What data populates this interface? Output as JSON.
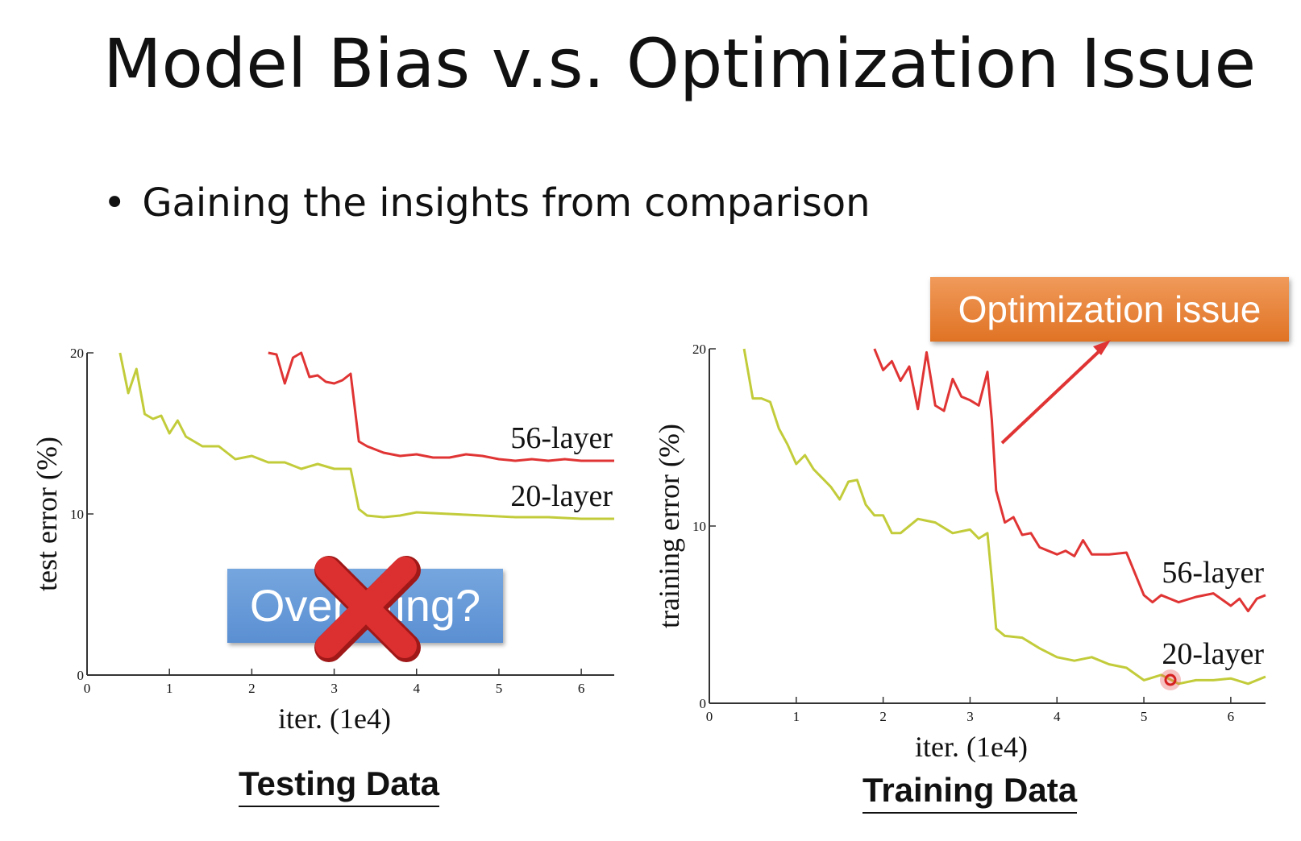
{
  "slide": {
    "title": "Model Bias v.s. Optimization Issue",
    "bullet_symbol": "•",
    "bullet": "Gaining the insights from comparison"
  },
  "annotations": {
    "overfitting_label": "Overfitting?",
    "optimization_label": "Optimization issue"
  },
  "colors": {
    "series_56": "#e03434",
    "series_20": "#c2cc3a",
    "overfit_box": "#6b9bd8",
    "callout": "#e87d30",
    "cross": "#d92c2c"
  },
  "chart_data": [
    {
      "type": "line",
      "caption": "Testing Data",
      "xlabel": "iter. (1e4)",
      "ylabel": "test error (%)",
      "xlim": [
        0,
        6.4
      ],
      "ylim": [
        0,
        20
      ],
      "xticks": [
        0,
        1,
        2,
        3,
        4,
        5,
        6
      ],
      "yticks": [
        0,
        10,
        20
      ],
      "series": [
        {
          "name": "56-layer",
          "x": [
            2.2,
            2.3,
            2.4,
            2.5,
            2.6,
            2.7,
            2.8,
            2.9,
            3.0,
            3.1,
            3.2,
            3.3,
            3.4,
            3.6,
            3.8,
            4.0,
            4.2,
            4.4,
            4.6,
            4.8,
            5.0,
            5.2,
            5.4,
            5.6,
            5.8,
            6.0,
            6.2,
            6.4
          ],
          "y": [
            20,
            19.9,
            18.1,
            19.7,
            20,
            18.5,
            18.6,
            18.2,
            18.1,
            18.3,
            18.7,
            14.5,
            14.2,
            13.8,
            13.6,
            13.7,
            13.5,
            13.5,
            13.7,
            13.6,
            13.4,
            13.3,
            13.4,
            13.3,
            13.4,
            13.3,
            13.3,
            13.3
          ]
        },
        {
          "name": "20-layer",
          "x": [
            0.4,
            0.5,
            0.6,
            0.7,
            0.8,
            0.9,
            1.0,
            1.1,
            1.2,
            1.4,
            1.6,
            1.8,
            2.0,
            2.2,
            2.4,
            2.6,
            2.8,
            3.0,
            3.2,
            3.3,
            3.4,
            3.6,
            3.8,
            4.0,
            4.4,
            4.8,
            5.2,
            5.6,
            6.0,
            6.4
          ],
          "y": [
            20,
            17.5,
            19,
            16.2,
            15.9,
            16.1,
            15,
            15.8,
            14.8,
            14.2,
            14.2,
            13.4,
            13.6,
            13.2,
            13.2,
            12.8,
            13.1,
            12.8,
            12.8,
            10.3,
            9.9,
            9.8,
            9.9,
            10.1,
            10,
            9.9,
            9.8,
            9.8,
            9.7,
            9.7
          ]
        }
      ]
    },
    {
      "type": "line",
      "caption": "Training Data",
      "xlabel": "iter. (1e4)",
      "ylabel": "training error (%)",
      "xlim": [
        0,
        6.4
      ],
      "ylim": [
        0,
        20
      ],
      "xticks": [
        0,
        1,
        2,
        3,
        4,
        5,
        6
      ],
      "yticks": [
        0,
        10,
        20
      ],
      "series": [
        {
          "name": "56-layer",
          "x": [
            1.9,
            2.0,
            2.1,
            2.2,
            2.3,
            2.4,
            2.5,
            2.6,
            2.7,
            2.8,
            2.9,
            3.0,
            3.1,
            3.2,
            3.25,
            3.3,
            3.4,
            3.5,
            3.6,
            3.7,
            3.8,
            3.9,
            4.0,
            4.1,
            4.2,
            4.3,
            4.4,
            4.6,
            4.8,
            5.0,
            5.1,
            5.2,
            5.4,
            5.6,
            5.8,
            6.0,
            6.1,
            6.2,
            6.3,
            6.4
          ],
          "y": [
            20,
            18.8,
            19.3,
            18.2,
            19,
            16.6,
            19.8,
            16.8,
            16.5,
            18.3,
            17.3,
            17.1,
            16.8,
            18.7,
            16,
            12,
            10.2,
            10.5,
            9.5,
            9.6,
            8.8,
            8.6,
            8.4,
            8.6,
            8.3,
            9.2,
            8.4,
            8.4,
            8.5,
            6.1,
            5.7,
            6.1,
            5.7,
            6.0,
            6.2,
            5.5,
            5.9,
            5.2,
            5.9,
            6.1
          ]
        },
        {
          "name": "20-layer",
          "x": [
            0.4,
            0.5,
            0.6,
            0.7,
            0.8,
            0.9,
            1.0,
            1.1,
            1.2,
            1.3,
            1.4,
            1.5,
            1.6,
            1.7,
            1.8,
            1.9,
            2.0,
            2.1,
            2.2,
            2.4,
            2.6,
            2.8,
            3.0,
            3.1,
            3.2,
            3.25,
            3.3,
            3.4,
            3.6,
            3.8,
            4.0,
            4.2,
            4.4,
            4.6,
            4.8,
            5.0,
            5.2,
            5.4,
            5.6,
            5.8,
            6.0,
            6.2,
            6.4
          ],
          "y": [
            20,
            17.2,
            17.2,
            17,
            15.5,
            14.6,
            13.5,
            14,
            13.2,
            12.7,
            12.2,
            11.5,
            12.5,
            12.6,
            11.2,
            10.6,
            10.6,
            9.6,
            9.6,
            10.4,
            10.2,
            9.6,
            9.8,
            9.3,
            9.6,
            7,
            4.2,
            3.8,
            3.7,
            3.1,
            2.6,
            2.4,
            2.6,
            2.2,
            2.0,
            1.3,
            1.6,
            1.1,
            1.3,
            1.3,
            1.4,
            1.1,
            1.5
          ]
        }
      ]
    }
  ]
}
